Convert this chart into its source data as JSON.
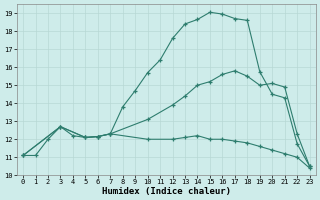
{
  "xlabel": "Humidex (Indice chaleur)",
  "ylabel": "",
  "bg_color": "#ceecea",
  "grid_color": "#b8d8d5",
  "line_color": "#2e7d6e",
  "xlim": [
    -0.5,
    23.5
  ],
  "ylim": [
    10,
    19.5
  ],
  "yticks": [
    10,
    11,
    12,
    13,
    14,
    15,
    16,
    17,
    18,
    19
  ],
  "xticks": [
    0,
    1,
    2,
    3,
    4,
    5,
    6,
    7,
    8,
    9,
    10,
    11,
    12,
    13,
    14,
    15,
    16,
    17,
    18,
    19,
    20,
    21,
    22,
    23
  ],
  "line1_x": [
    0,
    1,
    2,
    3,
    4,
    5,
    6,
    7,
    8,
    9,
    10,
    11,
    12,
    13,
    14,
    15,
    16,
    17,
    18,
    19,
    20,
    21,
    22,
    23
  ],
  "line1_y": [
    11.1,
    11.1,
    12.0,
    12.7,
    12.2,
    12.1,
    12.15,
    12.3,
    13.8,
    14.7,
    15.7,
    16.4,
    17.6,
    18.4,
    18.65,
    19.05,
    18.95,
    18.7,
    18.6,
    15.75,
    14.5,
    14.3,
    11.75,
    10.5
  ],
  "line2_x": [
    0,
    3,
    5,
    6,
    7,
    10,
    12,
    13,
    14,
    15,
    16,
    17,
    18,
    19,
    20,
    21,
    22,
    23
  ],
  "line2_y": [
    11.1,
    12.7,
    12.1,
    12.15,
    12.3,
    13.1,
    13.9,
    14.4,
    15.0,
    15.2,
    15.6,
    15.8,
    15.5,
    15.0,
    15.1,
    14.9,
    12.3,
    10.5
  ],
  "line3_x": [
    0,
    3,
    5,
    6,
    7,
    10,
    12,
    13,
    14,
    15,
    16,
    17,
    18,
    19,
    20,
    21,
    22,
    23
  ],
  "line3_y": [
    11.1,
    12.7,
    12.1,
    12.15,
    12.3,
    12.0,
    12.0,
    12.1,
    12.2,
    12.0,
    12.0,
    11.9,
    11.8,
    11.6,
    11.4,
    11.2,
    11.0,
    10.4
  ]
}
